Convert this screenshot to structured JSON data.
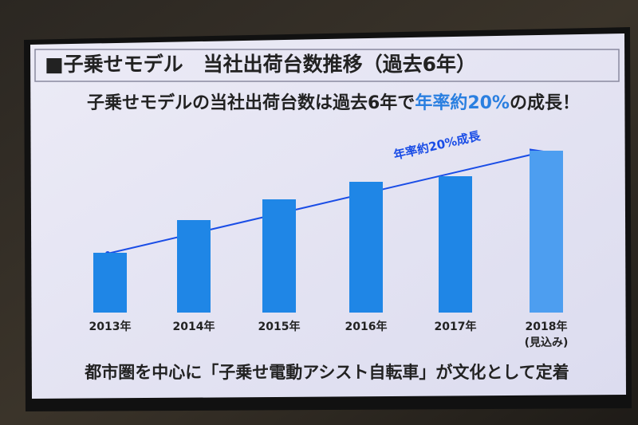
{
  "chart_data": {
    "type": "bar",
    "title": "■子乗せモデル　当社出荷台数推移（過去6年）",
    "subtitle": [
      "子乗せモデルの当社出荷台数は過去6年で",
      "年率約20%",
      "の成長！"
    ],
    "annotation": "年率約20%成長",
    "categories": [
      "2013年",
      "2014年",
      "2015年",
      "2016年",
      "2017年",
      "2018年"
    ],
    "category_note": "(見込み)",
    "values": [
      75,
      116,
      142,
      164,
      171,
      203
    ],
    "colors": [
      "#1f86e6",
      "#1f86e6",
      "#1f86e6",
      "#1f86e6",
      "#1f86e6",
      "#4d9ef0"
    ],
    "ylim": [
      0,
      220
    ],
    "footnote": "都市圏を中心に「子乗せ電動アシスト自転車」が文化として定着"
  }
}
